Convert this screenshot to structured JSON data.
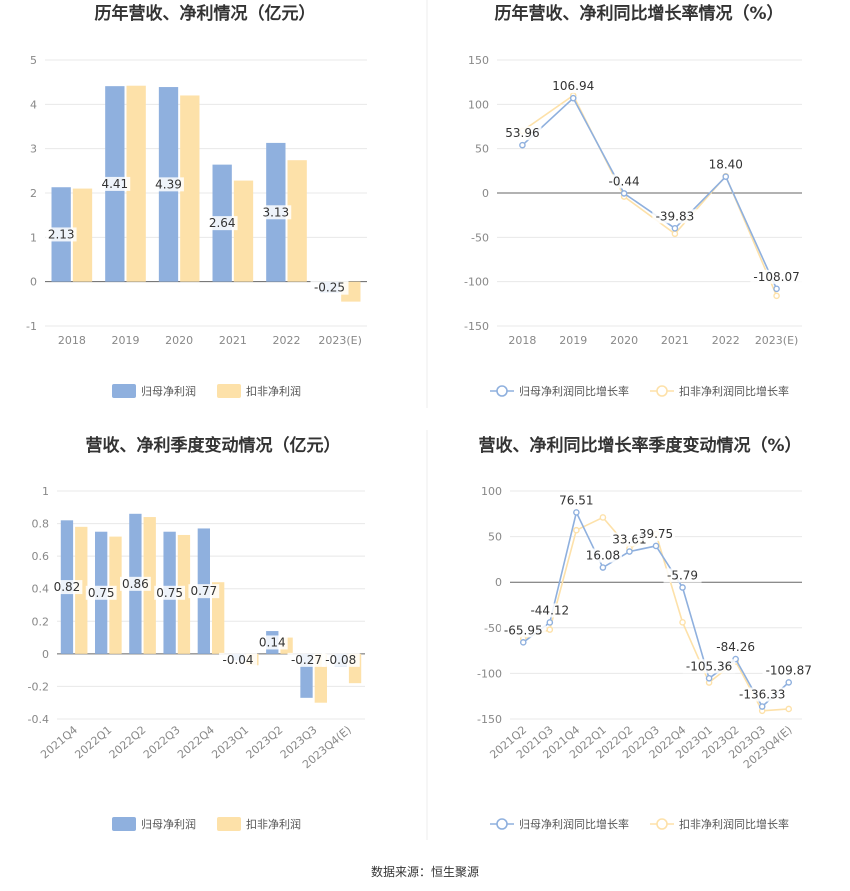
{
  "source": "数据来源：恒生聚源",
  "colors": {
    "series1": "#8fb0de",
    "series2": "#fde1a9",
    "axis": "#666666",
    "grid": "#e8e8e8"
  },
  "chart_data": [
    {
      "type": "bar",
      "title": "历年营收、净利情况（亿元）",
      "categories": [
        "2018",
        "2019",
        "2020",
        "2021",
        "2022",
        "2023(E)"
      ],
      "ylim": [
        -1,
        5
      ],
      "yticks": [
        -1,
        0,
        1,
        2,
        3,
        4,
        5
      ],
      "series": [
        {
          "name": "归母净利润",
          "values": [
            2.13,
            4.41,
            4.39,
            2.64,
            3.13,
            -0.25
          ],
          "labels": [
            "2.13",
            "4.41",
            "4.39",
            "2.64",
            "3.13",
            "-0.25"
          ]
        },
        {
          "name": "扣非净利润",
          "values": [
            2.1,
            4.42,
            4.2,
            2.28,
            2.74,
            -0.45
          ]
        }
      ],
      "legend": "bottom"
    },
    {
      "type": "line",
      "title": "历年营收、净利同比增长率情况（%）",
      "categories": [
        "2018",
        "2019",
        "2020",
        "2021",
        "2022",
        "2023(E)"
      ],
      "ylim": [
        -150,
        150
      ],
      "yticks": [
        -150,
        -100,
        -50,
        0,
        50,
        100,
        150
      ],
      "series": [
        {
          "name": "归母净利润同比增长率",
          "values": [
            53.96,
            106.94,
            -0.44,
            -39.83,
            18.4,
            -108.07
          ],
          "labels": [
            "53.96",
            "106.94",
            "-0.44",
            "-39.83",
            "18.40",
            "-108.07"
          ]
        },
        {
          "name": "扣非净利润同比增长率",
          "values": [
            70,
            110,
            -4,
            -46,
            19,
            -116
          ]
        }
      ],
      "legend": "bottom"
    },
    {
      "type": "bar",
      "title": "营收、净利季度变动情况（亿元）",
      "categories": [
        "2021Q4",
        "2022Q1",
        "2022Q2",
        "2022Q3",
        "2022Q4",
        "2023Q1",
        "2023Q2",
        "2023Q3",
        "2023Q4(E)"
      ],
      "ylim": [
        -0.4,
        1
      ],
      "yticks": [
        -0.4,
        -0.2,
        0,
        0.2,
        0.4,
        0.6,
        0.8,
        1
      ],
      "series": [
        {
          "name": "归母净利润",
          "values": [
            0.82,
            0.75,
            0.86,
            0.75,
            0.77,
            -0.04,
            0.14,
            -0.27,
            -0.08
          ],
          "labels": [
            "0.82",
            "0.75",
            "0.86",
            "0.75",
            "0.77",
            "-0.04",
            "0.14",
            "-0.27",
            "-0.08"
          ]
        },
        {
          "name": "扣非净利润",
          "values": [
            0.78,
            0.72,
            0.84,
            0.73,
            0.44,
            -0.07,
            0.1,
            -0.3,
            -0.18
          ]
        }
      ],
      "legend": "bottom"
    },
    {
      "type": "line",
      "title": "营收、净利同比增长率季度变动情况（%）",
      "categories": [
        "2021Q2",
        "2021Q3",
        "2021Q4",
        "2022Q1",
        "2022Q2",
        "2022Q3",
        "2022Q4",
        "2023Q1",
        "2023Q2",
        "2023Q3",
        "2023Q4(E)"
      ],
      "ylim": [
        -150,
        100
      ],
      "yticks": [
        -150,
        -100,
        -50,
        0,
        50,
        100
      ],
      "series": [
        {
          "name": "归母净利润同比增长率",
          "values": [
            -65.95,
            -44.12,
            76.51,
            16.08,
            33.61,
            39.75,
            -5.79,
            -105.36,
            -84.26,
            -136.33,
            -109.87
          ],
          "labels": [
            "-65.95",
            "-44.12",
            "76.51",
            "16.08",
            "33.61",
            "39.75",
            "-5.79",
            "-105.36",
            "-84.26",
            "-136.33",
            "-109.87"
          ]
        },
        {
          "name": "扣非净利润同比增长率",
          "values": [
            -62,
            -52,
            57,
            71,
            37,
            53,
            -44,
            -110,
            -87,
            -141,
            -139
          ]
        }
      ],
      "legend": "bottom"
    }
  ]
}
